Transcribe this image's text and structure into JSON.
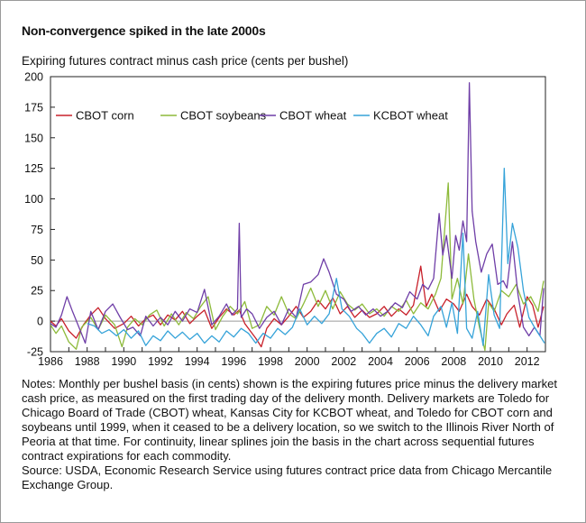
{
  "title": "Non-convergence spiked in the late 2000s",
  "notes": "Notes: Monthly per bushel basis (in cents) shown is the expiring futures price minus the delivery market cash price, as measured on the first trading day of the delivery month. Delivery markets are Toledo for Chicago Board of Trade (CBOT) wheat, Kansas City for KCBOT wheat, and Toledo for CBOT corn and soybeans until 1999, when it ceased to be a delivery location, so we switch to the Illinois River North of Peoria at that time. For continuity, linear splines join the basis in the chart across sequential futures contract expirations for each commodity.",
  "source": "Source: USDA, Economic Research Service using futures contract price data from Chicago Mercantile Exchange Group.",
  "chart_data": {
    "type": "line",
    "ylabel": "Expiring futures contract minus cash price (cents per bushel)",
    "ylim": [
      -25,
      200
    ],
    "yticks": [
      -25,
      0,
      25,
      50,
      75,
      100,
      125,
      150,
      175,
      200
    ],
    "ytick_labels": [
      "-25",
      "0",
      "25",
      "50",
      "75",
      "100",
      "125",
      "150",
      "175",
      "200"
    ],
    "xlim": [
      1986,
      2013
    ],
    "xticks": [
      1986,
      1988,
      1990,
      1992,
      1994,
      1996,
      1998,
      2000,
      2002,
      2004,
      2006,
      2008,
      2010,
      2012
    ],
    "xtick_labels": [
      "1986",
      "1988",
      "1990",
      "1992",
      "1994",
      "1996",
      "1998",
      "2000",
      "2002",
      "2004",
      "2006",
      "2008",
      "2010",
      "2012"
    ],
    "zero_line": true,
    "grid": false,
    "legend_position": "top-left",
    "series": [
      {
        "name": "CBOT corn",
        "color": "#c8202a",
        "points": [
          [
            1986.0,
            0
          ],
          [
            1986.3,
            -4
          ],
          [
            1986.6,
            2
          ],
          [
            1987.0,
            -8
          ],
          [
            1987.4,
            -14
          ],
          [
            1987.8,
            -3
          ],
          [
            1988.2,
            5
          ],
          [
            1988.6,
            11
          ],
          [
            1989.0,
            2
          ],
          [
            1989.5,
            -6
          ],
          [
            1990.0,
            -2
          ],
          [
            1990.4,
            4
          ],
          [
            1990.8,
            -4
          ],
          [
            1991.2,
            2
          ],
          [
            1991.6,
            5
          ],
          [
            1992.0,
            -3
          ],
          [
            1992.4,
            5
          ],
          [
            1992.8,
            1
          ],
          [
            1993.2,
            8
          ],
          [
            1993.6,
            -2
          ],
          [
            1994.0,
            4
          ],
          [
            1994.4,
            9
          ],
          [
            1994.8,
            -6
          ],
          [
            1995.2,
            3
          ],
          [
            1995.6,
            10
          ],
          [
            1996.0,
            5
          ],
          [
            1996.3,
            9
          ],
          [
            1996.6,
            -2
          ],
          [
            1996.9,
            -8
          ],
          [
            1997.2,
            -14
          ],
          [
            1997.5,
            -21
          ],
          [
            1997.8,
            -6
          ],
          [
            1998.2,
            2
          ],
          [
            1998.6,
            -3
          ],
          [
            1999.0,
            4
          ],
          [
            1999.4,
            12
          ],
          [
            1999.8,
            3
          ],
          [
            2000.2,
            8
          ],
          [
            2000.6,
            17
          ],
          [
            2001.0,
            10
          ],
          [
            2001.4,
            19
          ],
          [
            2001.8,
            6
          ],
          [
            2002.2,
            12
          ],
          [
            2002.6,
            3
          ],
          [
            2003.0,
            9
          ],
          [
            2003.4,
            3
          ],
          [
            2003.8,
            6
          ],
          [
            2004.2,
            12
          ],
          [
            2004.6,
            4
          ],
          [
            2005.0,
            10
          ],
          [
            2005.4,
            5
          ],
          [
            2005.8,
            13
          ],
          [
            2006.2,
            45
          ],
          [
            2006.5,
            12
          ],
          [
            2006.8,
            22
          ],
          [
            2007.2,
            8
          ],
          [
            2007.6,
            18
          ],
          [
            2008.0,
            14
          ],
          [
            2008.3,
            8
          ],
          [
            2008.7,
            22
          ],
          [
            2009.0,
            12
          ],
          [
            2009.4,
            5
          ],
          [
            2009.8,
            18
          ],
          [
            2010.2,
            10
          ],
          [
            2010.6,
            -3
          ],
          [
            2010.9,
            6
          ],
          [
            2011.3,
            13
          ],
          [
            2011.6,
            -5
          ],
          [
            2012.0,
            20
          ],
          [
            2012.3,
            13
          ],
          [
            2012.6,
            -5
          ],
          [
            2012.9,
            12
          ]
        ]
      },
      {
        "name": "CBOT soybeans",
        "color": "#8dba3a",
        "points": [
          [
            1986.0,
            -3
          ],
          [
            1986.3,
            -10
          ],
          [
            1986.6,
            -4
          ],
          [
            1987.0,
            -17
          ],
          [
            1987.4,
            -23
          ],
          [
            1987.7,
            -5
          ],
          [
            1988.2,
            3
          ],
          [
            1988.6,
            -7
          ],
          [
            1989.0,
            5
          ],
          [
            1989.5,
            -3
          ],
          [
            1989.9,
            -21
          ],
          [
            1990.2,
            -5
          ],
          [
            1990.6,
            2
          ],
          [
            1991.0,
            -3
          ],
          [
            1991.4,
            5
          ],
          [
            1991.8,
            9
          ],
          [
            1992.2,
            -4
          ],
          [
            1992.6,
            6
          ],
          [
            1993.0,
            -3
          ],
          [
            1993.4,
            7
          ],
          [
            1993.8,
            2
          ],
          [
            1994.2,
            12
          ],
          [
            1994.6,
            20
          ],
          [
            1995.0,
            -7
          ],
          [
            1995.4,
            4
          ],
          [
            1995.8,
            12
          ],
          [
            1996.2,
            6
          ],
          [
            1996.6,
            16
          ],
          [
            1997.0,
            -6
          ],
          [
            1997.4,
            -3
          ],
          [
            1997.8,
            12
          ],
          [
            1998.2,
            5
          ],
          [
            1998.6,
            20
          ],
          [
            1999.0,
            6
          ],
          [
            1999.4,
            2
          ],
          [
            1999.8,
            14
          ],
          [
            2000.2,
            27
          ],
          [
            2000.6,
            12
          ],
          [
            2001.0,
            25
          ],
          [
            2001.4,
            10
          ],
          [
            2001.8,
            24
          ],
          [
            2002.2,
            14
          ],
          [
            2002.6,
            9
          ],
          [
            2003.0,
            14
          ],
          [
            2003.4,
            6
          ],
          [
            2003.8,
            10
          ],
          [
            2004.2,
            4
          ],
          [
            2004.6,
            12
          ],
          [
            2005.0,
            8
          ],
          [
            2005.4,
            17
          ],
          [
            2005.8,
            6
          ],
          [
            2006.2,
            15
          ],
          [
            2006.6,
            10
          ],
          [
            2007.0,
            22
          ],
          [
            2007.3,
            35
          ],
          [
            2007.7,
            113
          ],
          [
            2007.9,
            18
          ],
          [
            2008.2,
            35
          ],
          [
            2008.5,
            14
          ],
          [
            2008.8,
            55
          ],
          [
            2009.1,
            18
          ],
          [
            2009.4,
            -5
          ],
          [
            2009.7,
            -24
          ],
          [
            2009.9,
            15
          ],
          [
            2010.2,
            8
          ],
          [
            2010.6,
            25
          ],
          [
            2011.0,
            20
          ],
          [
            2011.4,
            30
          ],
          [
            2011.8,
            14
          ],
          [
            2012.2,
            20
          ],
          [
            2012.6,
            8
          ],
          [
            2012.9,
            33
          ]
        ]
      },
      {
        "name": "CBOT wheat",
        "color": "#6f3ea7",
        "points": [
          [
            1986.0,
            -2
          ],
          [
            1986.3,
            -5
          ],
          [
            1986.6,
            5
          ],
          [
            1986.9,
            20
          ],
          [
            1987.2,
            8
          ],
          [
            1987.5,
            -3
          ],
          [
            1987.9,
            -18
          ],
          [
            1988.2,
            8
          ],
          [
            1988.6,
            -7
          ],
          [
            1989.0,
            8
          ],
          [
            1989.4,
            14
          ],
          [
            1989.8,
            3
          ],
          [
            1990.2,
            -7
          ],
          [
            1990.5,
            -5
          ],
          [
            1990.9,
            -12
          ],
          [
            1991.2,
            4
          ],
          [
            1991.6,
            -4
          ],
          [
            1992.0,
            3
          ],
          [
            1992.4,
            -3
          ],
          [
            1992.8,
            8
          ],
          [
            1993.2,
            0
          ],
          [
            1993.6,
            10
          ],
          [
            1994.0,
            7
          ],
          [
            1994.4,
            26
          ],
          [
            1994.8,
            -3
          ],
          [
            1995.2,
            4
          ],
          [
            1995.6,
            14
          ],
          [
            1995.9,
            5
          ],
          [
            1996.2,
            10
          ],
          [
            1996.3,
            80
          ],
          [
            1996.4,
            3
          ],
          [
            1996.7,
            10
          ],
          [
            1997.0,
            6
          ],
          [
            1997.4,
            -6
          ],
          [
            1997.8,
            3
          ],
          [
            1998.2,
            8
          ],
          [
            1998.6,
            -3
          ],
          [
            1999.0,
            10
          ],
          [
            1999.4,
            3
          ],
          [
            1999.8,
            30
          ],
          [
            2000.2,
            32
          ],
          [
            2000.6,
            38
          ],
          [
            2000.9,
            51
          ],
          [
            2001.2,
            40
          ],
          [
            2001.6,
            22
          ],
          [
            2002.0,
            18
          ],
          [
            2002.4,
            8
          ],
          [
            2002.8,
            12
          ],
          [
            2003.2,
            5
          ],
          [
            2003.6,
            10
          ],
          [
            2004.0,
            4
          ],
          [
            2004.4,
            8
          ],
          [
            2004.8,
            15
          ],
          [
            2005.2,
            11
          ],
          [
            2005.6,
            24
          ],
          [
            2006.0,
            18
          ],
          [
            2006.3,
            30
          ],
          [
            2006.6,
            26
          ],
          [
            2006.9,
            35
          ],
          [
            2007.2,
            88
          ],
          [
            2007.4,
            54
          ],
          [
            2007.6,
            70
          ],
          [
            2007.9,
            35
          ],
          [
            2008.1,
            70
          ],
          [
            2008.3,
            58
          ],
          [
            2008.5,
            82
          ],
          [
            2008.7,
            65
          ],
          [
            2008.85,
            195
          ],
          [
            2009.0,
            90
          ],
          [
            2009.2,
            65
          ],
          [
            2009.5,
            40
          ],
          [
            2009.8,
            55
          ],
          [
            2010.1,
            63
          ],
          [
            2010.4,
            30
          ],
          [
            2010.7,
            33
          ],
          [
            2010.9,
            27
          ],
          [
            2011.2,
            65
          ],
          [
            2011.5,
            22
          ],
          [
            2011.8,
            -5
          ],
          [
            2012.1,
            -12
          ],
          [
            2012.4,
            -5
          ],
          [
            2012.7,
            -12
          ],
          [
            2012.9,
            27
          ]
        ]
      },
      {
        "name": "KCBOT wheat",
        "color": "#36a3d9",
        "points": [
          [
            1988.0,
            -2
          ],
          [
            1988.4,
            -4
          ],
          [
            1988.8,
            -10
          ],
          [
            1989.2,
            -7
          ],
          [
            1989.6,
            -12
          ],
          [
            1990.0,
            -7
          ],
          [
            1990.4,
            -14
          ],
          [
            1990.8,
            -8
          ],
          [
            1991.2,
            -20
          ],
          [
            1991.6,
            -12
          ],
          [
            1992.0,
            -16
          ],
          [
            1992.4,
            -8
          ],
          [
            1992.8,
            -14
          ],
          [
            1993.2,
            -9
          ],
          [
            1993.6,
            -15
          ],
          [
            1994.0,
            -10
          ],
          [
            1994.4,
            -18
          ],
          [
            1994.8,
            -12
          ],
          [
            1995.2,
            -17
          ],
          [
            1995.6,
            -8
          ],
          [
            1996.0,
            -13
          ],
          [
            1996.4,
            -6
          ],
          [
            1996.8,
            -10
          ],
          [
            1997.2,
            -18
          ],
          [
            1997.6,
            -10
          ],
          [
            1998.0,
            -14
          ],
          [
            1998.4,
            -6
          ],
          [
            1998.8,
            -11
          ],
          [
            1999.2,
            -5
          ],
          [
            1999.6,
            10
          ],
          [
            2000.0,
            -3
          ],
          [
            2000.4,
            4
          ],
          [
            2000.8,
            -2
          ],
          [
            2001.2,
            6
          ],
          [
            2001.6,
            35
          ],
          [
            2001.9,
            10
          ],
          [
            2002.3,
            4
          ],
          [
            2002.7,
            -6
          ],
          [
            2003.0,
            -10
          ],
          [
            2003.4,
            -18
          ],
          [
            2003.8,
            -10
          ],
          [
            2004.2,
            -6
          ],
          [
            2004.6,
            -13
          ],
          [
            2005.0,
            -2
          ],
          [
            2005.4,
            -6
          ],
          [
            2005.8,
            4
          ],
          [
            2006.2,
            -3
          ],
          [
            2006.6,
            -12
          ],
          [
            2006.9,
            4
          ],
          [
            2007.3,
            12
          ],
          [
            2007.6,
            -5
          ],
          [
            2007.9,
            15
          ],
          [
            2008.2,
            -10
          ],
          [
            2008.5,
            72
          ],
          [
            2008.7,
            -6
          ],
          [
            2009.0,
            -14
          ],
          [
            2009.3,
            8
          ],
          [
            2009.6,
            -20
          ],
          [
            2009.9,
            38
          ],
          [
            2010.2,
            5
          ],
          [
            2010.5,
            -6
          ],
          [
            2010.75,
            125
          ],
          [
            2010.95,
            47
          ],
          [
            2011.2,
            80
          ],
          [
            2011.5,
            60
          ],
          [
            2011.8,
            25
          ],
          [
            2012.1,
            3
          ],
          [
            2012.4,
            -5
          ],
          [
            2012.7,
            -12
          ],
          [
            2012.95,
            -18
          ]
        ]
      }
    ]
  }
}
